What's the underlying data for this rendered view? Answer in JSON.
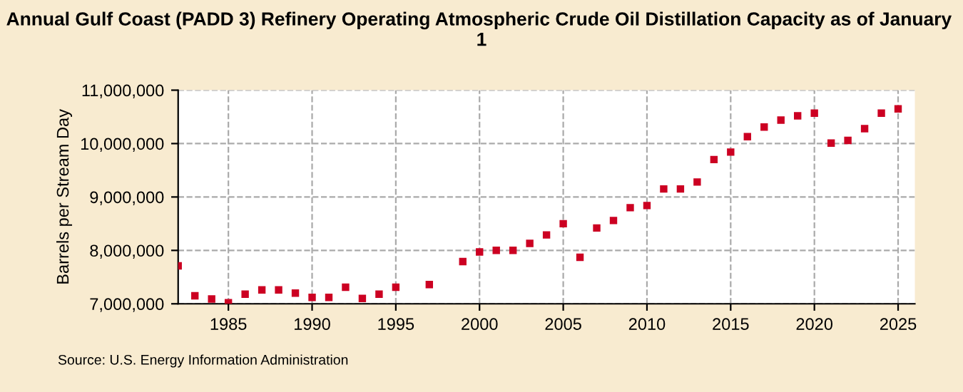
{
  "chart_data": {
    "type": "scatter",
    "title": "Annual Gulf Coast (PADD 3) Refinery Operating Atmospheric Crude Oil Distillation Capacity as of January  1",
    "ylabel": "Barrels per Stream Day",
    "x": [
      1982,
      1983,
      1984,
      1985,
      1986,
      1987,
      1988,
      1989,
      1990,
      1991,
      1992,
      1993,
      1994,
      1995,
      1997,
      1999,
      2000,
      2001,
      2002,
      2003,
      2004,
      2005,
      2006,
      2007,
      2008,
      2009,
      2010,
      2011,
      2012,
      2013,
      2014,
      2015,
      2016,
      2017,
      2018,
      2019,
      2020,
      2021,
      2022,
      2023,
      2024,
      2025
    ],
    "series": [
      {
        "color": "#cc0022",
        "values": [
          7710000,
          7150000,
          7090000,
          7020000,
          7180000,
          7260000,
          7260000,
          7200000,
          7120000,
          7120000,
          7310000,
          7100000,
          7180000,
          7310000,
          7360000,
          7790000,
          7970000,
          8000000,
          8000000,
          8130000,
          8290000,
          8500000,
          7870000,
          8420000,
          8560000,
          8800000,
          8840000,
          9150000,
          9150000,
          9280000,
          9700000,
          9840000,
          10130000,
          10310000,
          10440000,
          10520000,
          10570000,
          10010000,
          10060000,
          10280000,
          10570000,
          10650000
        ]
      }
    ],
    "xlim": [
      1982,
      2026
    ],
    "xticks": [
      1985,
      1990,
      1995,
      2000,
      2005,
      2010,
      2015,
      2020,
      2025
    ],
    "ylim": [
      7000000,
      11000000
    ],
    "yticks": [
      {
        "value": 7000000,
        "label": "7,000,000"
      },
      {
        "value": 8000000,
        "label": "8,000,000"
      },
      {
        "value": 9000000,
        "label": "9,000,000"
      },
      {
        "value": 10000000,
        "label": "10,000,000"
      },
      {
        "value": 11000000,
        "label": "11,000,000"
      }
    ],
    "grid": true,
    "marker": "square",
    "annotations": [
      "Source: U.S. Energy Information Administration"
    ]
  }
}
